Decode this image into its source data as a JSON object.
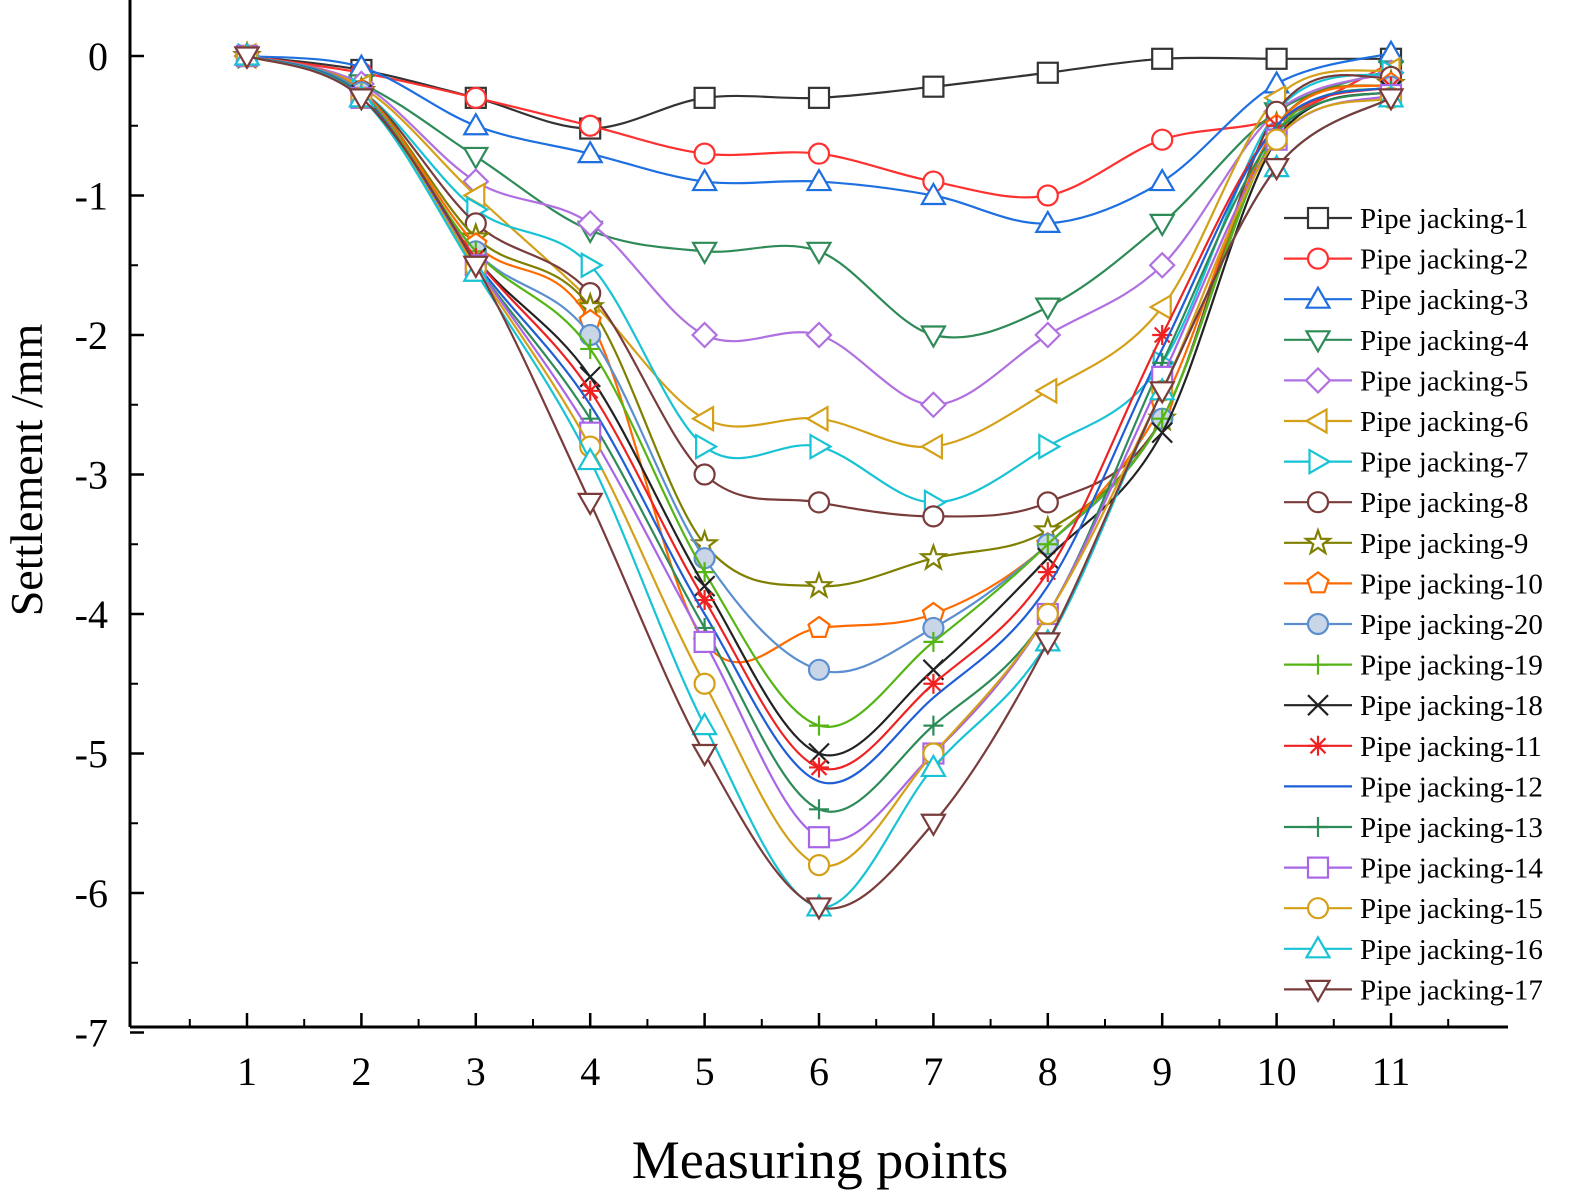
{
  "chart_data": {
    "type": "line",
    "title": "",
    "xlabel": "Measuring points",
    "ylabel": "Settlement /mm",
    "x": [
      1,
      2,
      3,
      4,
      5,
      6,
      7,
      8,
      9,
      10,
      11
    ],
    "xlim": [
      0,
      12
    ],
    "ylim": [
      -7,
      0.4
    ],
    "xticks": [
      "1",
      "2",
      "3",
      "4",
      "5",
      "6",
      "7",
      "8",
      "9",
      "10",
      "11"
    ],
    "yticks": [
      "0",
      "-1",
      "-2",
      "-3",
      "-4",
      "-5",
      "-6",
      "-7"
    ],
    "ytick_values": [
      0,
      -1,
      -2,
      -3,
      -4,
      -5,
      -6,
      -7
    ],
    "legend_position": "right",
    "series": [
      {
        "name": "Pipe jacking-1",
        "color": "#333333",
        "marker": "square",
        "values": [
          0,
          -0.1,
          -0.3,
          -0.52,
          -0.3,
          -0.3,
          -0.22,
          -0.12,
          -0.02,
          -0.02,
          -0.02
        ]
      },
      {
        "name": "Pipe jacking-2",
        "color": "#ff3030",
        "marker": "circle",
        "values": [
          0,
          -0.12,
          -0.3,
          -0.5,
          -0.7,
          -0.7,
          -0.9,
          -1.0,
          -0.6,
          -0.45,
          -0.05
        ]
      },
      {
        "name": "Pipe jacking-3",
        "color": "#1e6fe0",
        "marker": "triangle-up",
        "values": [
          0,
          -0.08,
          -0.5,
          -0.7,
          -0.9,
          -0.9,
          -1.0,
          -1.2,
          -0.9,
          -0.2,
          0.02
        ]
      },
      {
        "name": "Pipe jacking-4",
        "color": "#2e8b57",
        "marker": "triangle-down",
        "values": [
          0,
          -0.2,
          -0.72,
          -1.25,
          -1.4,
          -1.4,
          -2.0,
          -1.8,
          -1.2,
          -0.4,
          -0.1
        ]
      },
      {
        "name": "Pipe jacking-5",
        "color": "#b070e0",
        "marker": "diamond",
        "values": [
          0,
          -0.2,
          -0.9,
          -1.2,
          -2.0,
          -2.0,
          -2.5,
          -2.0,
          -1.5,
          -0.4,
          -0.12
        ]
      },
      {
        "name": "Pipe jacking-6",
        "color": "#d4a017",
        "marker": "triangle-left",
        "values": [
          0,
          -0.22,
          -1.0,
          -1.75,
          -2.6,
          -2.6,
          -2.8,
          -2.4,
          -1.8,
          -0.3,
          -0.1
        ]
      },
      {
        "name": "Pipe jacking-7",
        "color": "#17c3d4",
        "marker": "triangle-right",
        "values": [
          0,
          -0.25,
          -1.1,
          -1.5,
          -2.8,
          -2.8,
          -3.2,
          -2.8,
          -2.2,
          -0.4,
          -0.12
        ]
      },
      {
        "name": "Pipe jacking-8",
        "color": "#7a3b3b",
        "marker": "circle",
        "values": [
          0,
          -0.25,
          -1.2,
          -1.7,
          -3.0,
          -3.2,
          -3.3,
          -3.2,
          -2.6,
          -0.4,
          -0.15
        ]
      },
      {
        "name": "Pipe jacking-9",
        "color": "#808000",
        "marker": "star",
        "values": [
          0,
          -0.25,
          -1.3,
          -1.8,
          -3.5,
          -3.8,
          -3.6,
          -3.4,
          -2.6,
          -0.5,
          -0.2
        ]
      },
      {
        "name": "Pipe jacking-10",
        "color": "#ff6a00",
        "marker": "pentagon",
        "values": [
          0,
          -0.25,
          -1.35,
          -1.9,
          -4.2,
          -4.1,
          -4.0,
          -3.5,
          -2.5,
          -0.5,
          -0.2
        ]
      },
      {
        "name": "Pipe jacking-20",
        "color": "#5b8fd0",
        "marker": "circle-filled",
        "values": [
          0,
          -0.26,
          -1.4,
          -2.0,
          -3.6,
          -4.4,
          -4.1,
          -3.5,
          -2.6,
          -0.55,
          -0.22
        ]
      },
      {
        "name": "Pipe jacking-19",
        "color": "#55b515",
        "marker": "plus",
        "values": [
          0,
          -0.27,
          -1.4,
          -2.1,
          -3.7,
          -4.8,
          -4.2,
          -3.5,
          -2.6,
          -0.55,
          -0.22
        ]
      },
      {
        "name": "Pipe jacking-18",
        "color": "#222222",
        "marker": "cross",
        "values": [
          0,
          -0.28,
          -1.45,
          -2.3,
          -3.8,
          -5.0,
          -4.4,
          -3.6,
          -2.7,
          -0.6,
          -0.25
        ]
      },
      {
        "name": "Pipe jacking-11",
        "color": "#ee2222",
        "marker": "asterisk",
        "values": [
          0,
          -0.28,
          -1.45,
          -2.4,
          -3.9,
          -5.1,
          -4.5,
          -3.7,
          -2.0,
          -0.5,
          -0.22
        ]
      },
      {
        "name": "Pipe jacking-12",
        "color": "#1f5fd5",
        "marker": "none",
        "values": [
          0,
          -0.28,
          -1.48,
          -2.5,
          -4.0,
          -5.2,
          -4.6,
          -3.8,
          -2.1,
          -0.5,
          -0.22
        ]
      },
      {
        "name": "Pipe jacking-13",
        "color": "#2e8b57",
        "marker": "plus",
        "values": [
          0,
          -0.29,
          -1.5,
          -2.6,
          -4.1,
          -5.4,
          -4.8,
          -4.0,
          -2.2,
          -0.55,
          -0.25
        ]
      },
      {
        "name": "Pipe jacking-14",
        "color": "#a865e8",
        "marker": "square",
        "values": [
          0,
          -0.3,
          -1.5,
          -2.7,
          -4.2,
          -5.6,
          -5.0,
          -4.0,
          -2.3,
          -0.6,
          -0.28
        ]
      },
      {
        "name": "Pipe jacking-15",
        "color": "#d4a017",
        "marker": "circle",
        "values": [
          0,
          -0.3,
          -1.52,
          -2.8,
          -4.5,
          -5.8,
          -5.0,
          -4.0,
          -2.4,
          -0.6,
          -0.3
        ]
      },
      {
        "name": "Pipe jacking-16",
        "color": "#17c3d4",
        "marker": "triangle-up",
        "values": [
          0,
          -0.3,
          -1.55,
          -2.9,
          -4.8,
          -6.1,
          -5.1,
          -4.2,
          -2.4,
          -0.8,
          -0.3
        ]
      },
      {
        "name": "Pipe jacking-17",
        "color": "#7a3b3b",
        "marker": "triangle-down",
        "values": [
          0,
          -0.3,
          -1.5,
          -3.2,
          -5.0,
          -6.1,
          -5.5,
          -4.2,
          -2.4,
          -0.8,
          -0.3
        ]
      }
    ]
  }
}
